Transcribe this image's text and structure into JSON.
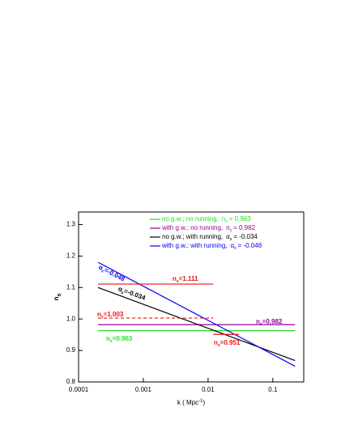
{
  "chart_data": {
    "type": "line",
    "x_label": {
      "text": "k ( Mpc",
      "sup": "-1",
      "end": ")"
    },
    "y_label": {
      "text": "n",
      "sub": "s"
    },
    "log_x": true,
    "xlim": [
      0.0001,
      0.3
    ],
    "ylim": [
      0.8,
      1.34
    ],
    "xticks": [
      0.0001,
      0.001,
      0.01,
      0.1
    ],
    "yticks": [
      0.8,
      0.9,
      {
        "value": 1.0,
        "label": "1.0"
      },
      1.1,
      1.2,
      1.3
    ],
    "legend_position": "upper right",
    "series": [
      {
        "name": "no  g.w.; no  running,",
        "param": {
          "sym": "n",
          "sub": "s",
          "value": "= 0.963"
        },
        "color": "#22dd22",
        "x": [
          0.0002,
          0.22
        ],
        "values": [
          0.963,
          0.963
        ]
      },
      {
        "name": "with g.w.; no  running,",
        "param": {
          "sym": "n",
          "sub": "s",
          "value": "= 0.982"
        },
        "color": "#990099",
        "x": [
          0.0002,
          0.22
        ],
        "values": [
          0.982,
          0.982
        ]
      },
      {
        "name": "no  g.w.; with running,",
        "param": {
          "sym": "α",
          "sub": "s",
          "value": "= -0.034"
        },
        "color": "#000000",
        "x": [
          0.0002,
          0.22
        ],
        "values": [
          1.1,
          0.868
        ]
      },
      {
        "name": "with g.w.; with running,",
        "param": {
          "sym": "α",
          "sub": "s",
          "value": "= -0.048"
        },
        "color": "#0000ee",
        "x": [
          0.0002,
          0.22
        ],
        "values": [
          1.18,
          0.85
        ]
      }
    ],
    "extra_lines": [
      {
        "color": "#ee1111",
        "dash": false,
        "x": [
          0.0002,
          0.012
        ],
        "values": [
          1.111,
          1.111
        ]
      },
      {
        "color": "#ee1111",
        "dash": true,
        "x": [
          0.0002,
          0.012
        ],
        "values": [
          1.003,
          1.003
        ]
      },
      {
        "color": "#ee1111",
        "dash": false,
        "x": [
          0.012,
          0.03
        ],
        "values": [
          0.951,
          0.951
        ]
      }
    ],
    "annotations": [
      {
        "sym": "n",
        "sub": "s",
        "text": "=1.111",
        "color": "#ee1111"
      },
      {
        "sym": "α",
        "sub": "s",
        "text": "=-0.048",
        "color": "#0000ee"
      },
      {
        "sym": "α",
        "sub": "s",
        "text": "=-0.034",
        "color": "#000000"
      },
      {
        "sym": "n",
        "sub": "s",
        "text": "=1.003",
        "color": "#ee1111"
      },
      {
        "sym": "n",
        "sub": "s",
        "text": "=0.982",
        "color": "#990099"
      },
      {
        "sym": "n",
        "sub": "s",
        "text": "=0.963",
        "color": "#22dd22"
      },
      {
        "sym": "n",
        "sub": "s",
        "text": "=0.951",
        "color": "#ee1111"
      }
    ]
  }
}
